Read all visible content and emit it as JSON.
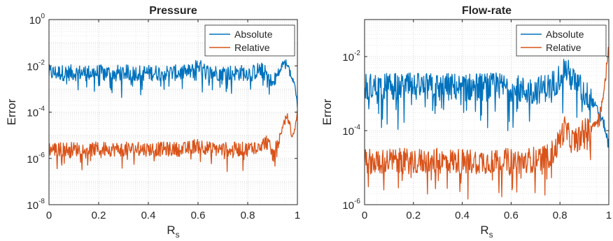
{
  "chart_data": [
    {
      "type": "line",
      "title": "Pressure",
      "xlabel": "R",
      "xlabel_sub": "s",
      "ylabel": "Error",
      "xlim": [
        0,
        1
      ],
      "ylim": [
        1e-08,
        1
      ],
      "yscale": "log",
      "xticks": [
        "0",
        "0.2",
        "0.4",
        "0.6",
        "0.8",
        "1"
      ],
      "yticks": [
        {
          "base": "10",
          "exp": "-8"
        },
        {
          "base": "10",
          "exp": "-6"
        },
        {
          "base": "10",
          "exp": "-4"
        },
        {
          "base": "10",
          "exp": "-2"
        },
        {
          "base": "10",
          "exp": "0"
        }
      ],
      "grid": true,
      "minor_grid": true,
      "legend_position": "top-right",
      "series": [
        {
          "name": "Absolute",
          "color": "#0072BD",
          "x": [
            0,
            0.05,
            0.1,
            0.15,
            0.2,
            0.25,
            0.3,
            0.35,
            0.4,
            0.45,
            0.5,
            0.55,
            0.58,
            0.6,
            0.62,
            0.65,
            0.7,
            0.75,
            0.8,
            0.82,
            0.85,
            0.88,
            0.9,
            0.92,
            0.94,
            0.95,
            0.96,
            0.97,
            0.98,
            0.99,
            1.0
          ],
          "y": [
            0.005,
            0.005,
            0.005,
            0.005,
            0.005,
            0.005,
            0.005,
            0.005,
            0.005,
            0.005,
            0.005,
            0.005,
            0.006,
            0.012,
            0.006,
            0.005,
            0.005,
            0.005,
            0.005,
            0.005,
            0.007,
            0.004,
            0.0015,
            0.004,
            0.012,
            0.016,
            0.013,
            0.006,
            0.0025,
            0.0015,
            0.0002
          ],
          "noise": 0.5
        },
        {
          "name": "Relative",
          "color": "#D95319",
          "x": [
            0,
            0.05,
            0.1,
            0.15,
            0.2,
            0.25,
            0.3,
            0.35,
            0.4,
            0.45,
            0.5,
            0.55,
            0.6,
            0.65,
            0.7,
            0.75,
            0.8,
            0.85,
            0.88,
            0.9,
            0.92,
            0.94,
            0.95,
            0.96,
            0.97,
            0.98,
            0.99,
            1.0
          ],
          "y": [
            2.5e-06,
            2.5e-06,
            2.5e-06,
            2.5e-06,
            2.5e-06,
            2.5e-06,
            2.5e-06,
            2.5e-06,
            2.5e-06,
            2.5e-06,
            2.5e-06,
            2.5e-06,
            4e-06,
            2.5e-06,
            2.5e-06,
            2.5e-06,
            2.5e-06,
            4e-06,
            5e-06,
            1.5e-06,
            4e-06,
            2e-05,
            5e-05,
            7e-05,
            3e-05,
            8e-06,
            2e-05,
            0.0001
          ],
          "noise": 0.45
        }
      ]
    },
    {
      "type": "line",
      "title": "Flow-rate",
      "xlabel": "R",
      "xlabel_sub": "s",
      "ylabel": "Error",
      "xlim": [
        0,
        1
      ],
      "ylim": [
        1e-06,
        0.1
      ],
      "yscale": "log",
      "xticks": [
        "0",
        "0.2",
        "0.4",
        "0.6",
        "0.8",
        "1"
      ],
      "yticks": [
        {
          "base": "10",
          "exp": "-6"
        },
        {
          "base": "10",
          "exp": "-4"
        },
        {
          "base": "10",
          "exp": "-2"
        }
      ],
      "grid": true,
      "minor_grid": true,
      "legend_position": "top-right",
      "series": [
        {
          "name": "Absolute",
          "color": "#0072BD",
          "x": [
            0,
            0.1,
            0.2,
            0.3,
            0.4,
            0.5,
            0.6,
            0.65,
            0.7,
            0.75,
            0.78,
            0.8,
            0.82,
            0.84,
            0.86,
            0.88,
            0.9,
            0.92,
            0.94,
            0.96,
            0.98,
            1.0
          ],
          "y": [
            0.0015,
            0.0015,
            0.0015,
            0.0015,
            0.0015,
            0.0015,
            0.0015,
            0.0012,
            0.0012,
            0.0015,
            0.002,
            0.003,
            0.005,
            0.003,
            0.002,
            0.0015,
            0.001,
            0.0008,
            0.0005,
            0.0003,
            0.00015,
            4e-05
          ],
          "noise": 0.55
        },
        {
          "name": "Relative",
          "color": "#D95319",
          "x": [
            0,
            0.1,
            0.2,
            0.3,
            0.4,
            0.5,
            0.6,
            0.65,
            0.7,
            0.75,
            0.78,
            0.8,
            0.82,
            0.84,
            0.86,
            0.88,
            0.9,
            0.92,
            0.94,
            0.96,
            0.98,
            0.99,
            1.0
          ],
          "y": [
            1.5e-05,
            1.5e-05,
            1.5e-05,
            1.5e-05,
            1.5e-05,
            1.5e-05,
            1.5e-05,
            1.5e-05,
            1.7e-05,
            2e-05,
            3e-05,
            6e-05,
            0.00012,
            6e-05,
            5e-05,
            7e-05,
            0.0001,
            0.00012,
            0.00015,
            0.00025,
            0.001,
            0.005,
            0.02
          ],
          "noise": 0.5
        }
      ]
    }
  ]
}
